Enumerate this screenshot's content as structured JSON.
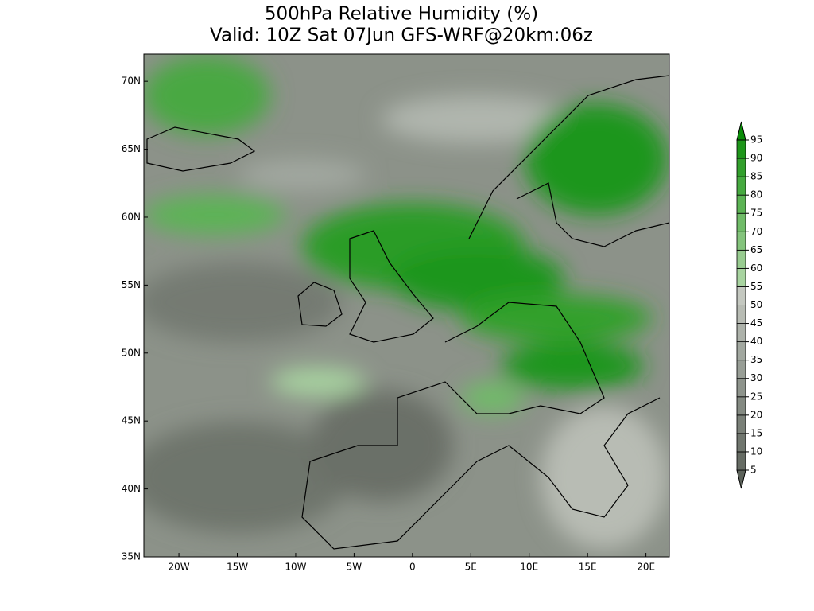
{
  "chart_data": {
    "type": "map",
    "title": "500hPa Relative Humidity (%)",
    "subtitle": "Valid: 10Z Sat 07Jun GFS-WRF@20km:06z",
    "xlim": [
      -23,
      22
    ],
    "ylim": [
      35,
      72
    ],
    "xticks": [
      {
        "value": -20,
        "label": "20W"
      },
      {
        "value": -15,
        "label": "15W"
      },
      {
        "value": -10,
        "label": "10W"
      },
      {
        "value": -5,
        "label": "5W"
      },
      0,
      {
        "value": 5,
        "label": "5E"
      },
      {
        "value": 10,
        "label": "10E"
      },
      {
        "value": 15,
        "label": "15E"
      },
      {
        "value": 20,
        "label": "20E"
      }
    ],
    "yticks": [
      {
        "value": 35,
        "label": "35N"
      },
      {
        "value": 40,
        "label": "40N"
      },
      {
        "value": 45,
        "label": "45N"
      },
      {
        "value": 50,
        "label": "50N"
      },
      {
        "value": 55,
        "label": "55N"
      },
      {
        "value": 60,
        "label": "60N"
      },
      {
        "value": 65,
        "label": "65N"
      },
      {
        "value": 70,
        "label": "70N"
      }
    ],
    "levels": [
      5,
      10,
      15,
      20,
      25,
      30,
      35,
      40,
      45,
      50,
      55,
      60,
      65,
      70,
      75,
      80,
      85,
      90,
      95
    ],
    "colors": [
      "#5c625a",
      "#666c64",
      "#70766e",
      "#7a8078",
      "#848a82",
      "#8e948c",
      "#989e96",
      "#a2a8a0",
      "#adb2aa",
      "#b8bcb4",
      "#c4c8c0",
      "#a8d4a0",
      "#98cc90",
      "#84c47c",
      "#70bc68",
      "#5cb454",
      "#46aa40",
      "#32a02c",
      "#1e961a",
      "#0a8c08"
    ]
  }
}
